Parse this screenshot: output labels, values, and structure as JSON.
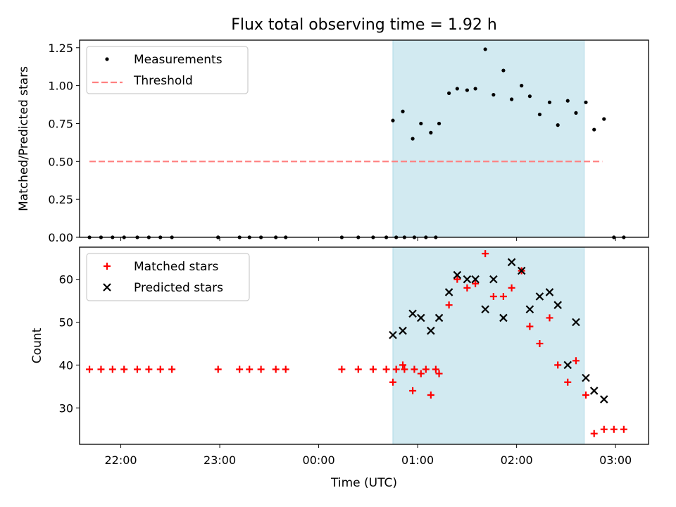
{
  "title": "Flux total observing time = 1.92 h",
  "chart_data": [
    {
      "type": "scatter",
      "ylabel": "Matched/Predicted stars",
      "ylim": [
        0,
        1.3
      ],
      "yticks": [
        "0.00",
        "0.25",
        "0.50",
        "0.75",
        "1.00",
        "1.25"
      ],
      "legend": [
        "Measurements",
        "Threshold"
      ],
      "legend_position": "upper left",
      "threshold": {
        "name": "Threshold",
        "value": 0.5,
        "x_start": "21:41",
        "x_end": "02:52",
        "color": "#ff8080",
        "style": "dashed"
      },
      "observing_window": {
        "start": "00:45",
        "end": "02:41",
        "color": "#add8e6"
      },
      "series": [
        {
          "name": "Measurements",
          "color": "#000000",
          "points": [
            [
              "21:41",
              0
            ],
            [
              "21:48",
              0
            ],
            [
              "21:55",
              0
            ],
            [
              "22:02",
              0
            ],
            [
              "22:10",
              0
            ],
            [
              "22:17",
              0
            ],
            [
              "22:24",
              0
            ],
            [
              "22:31",
              0
            ],
            [
              "22:59",
              0
            ],
            [
              "22:59",
              0
            ],
            [
              "23:12",
              0
            ],
            [
              "23:18",
              0
            ],
            [
              "23:25",
              0
            ],
            [
              "23:34",
              0
            ],
            [
              "23:40",
              0
            ],
            [
              "00:14",
              0
            ],
            [
              "00:24",
              0
            ],
            [
              "00:33",
              0
            ],
            [
              "00:41",
              0
            ],
            [
              "00:47",
              0
            ],
            [
              "00:52",
              0
            ],
            [
              "00:58",
              0
            ],
            [
              "01:05",
              0
            ],
            [
              "01:11",
              0
            ],
            [
              "00:45",
              0.77
            ],
            [
              "00:51",
              0.83
            ],
            [
              "00:57",
              0.65
            ],
            [
              "01:02",
              0.75
            ],
            [
              "01:08",
              0.69
            ],
            [
              "01:13",
              0.75
            ],
            [
              "01:19",
              0.95
            ],
            [
              "01:24",
              0.98
            ],
            [
              "01:30",
              0.97
            ],
            [
              "01:35",
              0.98
            ],
            [
              "01:41",
              1.24
            ],
            [
              "01:46",
              0.94
            ],
            [
              "01:52",
              1.1
            ],
            [
              "01:57",
              0.91
            ],
            [
              "02:03",
              1.0
            ],
            [
              "02:08",
              0.93
            ],
            [
              "02:14",
              0.81
            ],
            [
              "02:20",
              0.89
            ],
            [
              "02:25",
              0.74
            ],
            [
              "02:31",
              0.9
            ],
            [
              "02:36",
              0.82
            ],
            [
              "02:42",
              0.89
            ],
            [
              "02:47",
              0.71
            ],
            [
              "02:53",
              0.78
            ],
            [
              "02:59",
              0
            ],
            [
              "03:05",
              0
            ]
          ]
        }
      ]
    },
    {
      "type": "scatter",
      "xlabel": "Time (UTC)",
      "ylabel": "Count",
      "ylim": [
        21.5,
        67.5
      ],
      "yticks": [
        "30",
        "40",
        "50",
        "60"
      ],
      "xticks": [
        "22:00",
        "23:00",
        "00:00",
        "01:00",
        "02:00",
        "03:00"
      ],
      "legend": [
        "Matched stars",
        "Predicted stars"
      ],
      "legend_position": "upper left",
      "observing_window": {
        "start": "00:45",
        "end": "02:41",
        "color": "#add8e6"
      },
      "series": [
        {
          "name": "Matched stars",
          "marker": "+",
          "color": "#ff0000",
          "points": [
            [
              "21:41",
              39
            ],
            [
              "21:48",
              39
            ],
            [
              "21:55",
              39
            ],
            [
              "22:02",
              39
            ],
            [
              "22:10",
              39
            ],
            [
              "22:17",
              39
            ],
            [
              "22:24",
              39
            ],
            [
              "22:31",
              39
            ],
            [
              "22:59",
              39
            ],
            [
              "23:12",
              39
            ],
            [
              "23:18",
              39
            ],
            [
              "23:25",
              39
            ],
            [
              "23:34",
              39
            ],
            [
              "23:40",
              39
            ],
            [
              "00:14",
              39
            ],
            [
              "00:24",
              39
            ],
            [
              "00:33",
              39
            ],
            [
              "00:41",
              39
            ],
            [
              "00:47",
              39
            ],
            [
              "00:52",
              39
            ],
            [
              "00:58",
              39
            ],
            [
              "01:05",
              39
            ],
            [
              "01:11",
              39
            ],
            [
              "00:45",
              36
            ],
            [
              "00:51",
              40
            ],
            [
              "00:57",
              34
            ],
            [
              "01:02",
              38
            ],
            [
              "01:08",
              33
            ],
            [
              "01:13",
              38
            ],
            [
              "01:19",
              54
            ],
            [
              "01:24",
              60
            ],
            [
              "01:30",
              58
            ],
            [
              "01:35",
              59
            ],
            [
              "01:41",
              66
            ],
            [
              "01:46",
              56
            ],
            [
              "01:52",
              56
            ],
            [
              "01:57",
              58
            ],
            [
              "02:03",
              62
            ],
            [
              "02:08",
              49
            ],
            [
              "02:14",
              45
            ],
            [
              "02:20",
              51
            ],
            [
              "02:25",
              40
            ],
            [
              "02:31",
              36
            ],
            [
              "02:36",
              41
            ],
            [
              "02:42",
              33
            ],
            [
              "02:47",
              24
            ],
            [
              "02:53",
              25
            ],
            [
              "02:59",
              25
            ],
            [
              "03:05",
              25
            ]
          ]
        },
        {
          "name": "Predicted stars",
          "marker": "x",
          "color": "#000000",
          "points": [
            [
              "00:45",
              47
            ],
            [
              "00:51",
              48
            ],
            [
              "00:57",
              52
            ],
            [
              "01:02",
              51
            ],
            [
              "01:08",
              48
            ],
            [
              "01:13",
              51
            ],
            [
              "01:19",
              57
            ],
            [
              "01:24",
              61
            ],
            [
              "01:30",
              60
            ],
            [
              "01:35",
              60
            ],
            [
              "01:41",
              53
            ],
            [
              "01:46",
              60
            ],
            [
              "01:52",
              51
            ],
            [
              "01:57",
              64
            ],
            [
              "02:03",
              62
            ],
            [
              "02:08",
              53
            ],
            [
              "02:14",
              56
            ],
            [
              "02:20",
              57
            ],
            [
              "02:25",
              54
            ],
            [
              "02:31",
              40
            ],
            [
              "02:36",
              50
            ],
            [
              "02:42",
              37
            ],
            [
              "02:47",
              34
            ],
            [
              "02:53",
              32
            ]
          ]
        }
      ]
    }
  ]
}
